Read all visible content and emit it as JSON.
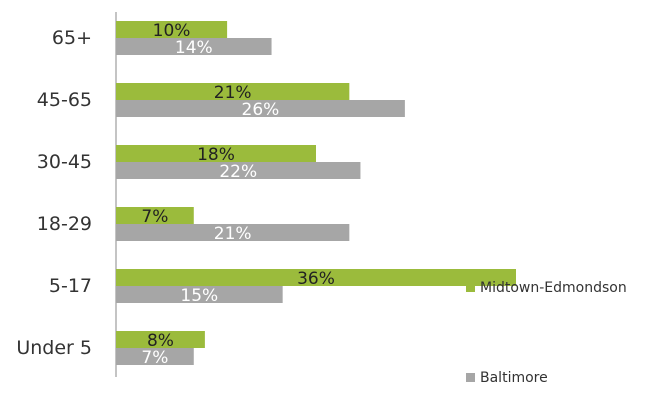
{
  "chart_data": {
    "type": "bar",
    "orientation": "horizontal",
    "categories": [
      "65+",
      "45-65",
      "30-45",
      "18-29",
      "5-17",
      "Under 5"
    ],
    "series": [
      {
        "name": "Midtown-Edmondson",
        "color": "#9bbb3c",
        "values": [
          10,
          21,
          18,
          7,
          36,
          8
        ],
        "labels": [
          "10%",
          "21%",
          "18%",
          "7%",
          "36%",
          "8%"
        ]
      },
      {
        "name": "Baltimore",
        "color": "#a6a6a6",
        "values": [
          14,
          26,
          22,
          21,
          15,
          7
        ],
        "labels": [
          "14%",
          "26%",
          "22%",
          "21%",
          "15%",
          "7%"
        ]
      }
    ],
    "xlim": [
      0,
      36
    ],
    "grid": false,
    "legend_position": "right"
  }
}
